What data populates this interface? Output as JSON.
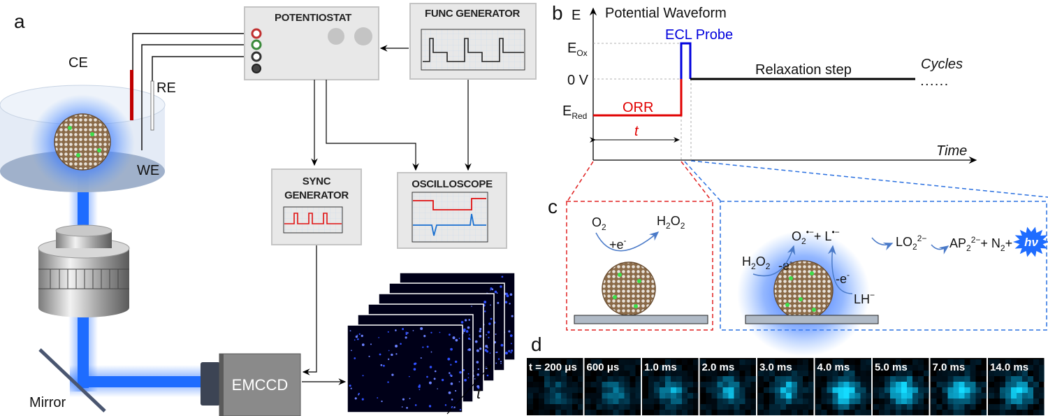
{
  "panel_a": {
    "label": "a",
    "electrodes": {
      "ce": "CE",
      "re": "RE",
      "we": "WE"
    },
    "potentiostat": "POTENTIOSTAT",
    "func_generator": "FUNC GENERATOR",
    "sync_generator": [
      "SYNC",
      "GENERATOR"
    ],
    "oscilloscope": "OSCILLOSCOPE",
    "camera": "EMCCD",
    "mirror": "Mirror",
    "stack_axis": "t",
    "colors": {
      "beam": "#1e6cff",
      "ce_wire": "#c00000",
      "frame_bg": "#000018",
      "spot": "#4060ff"
    }
  },
  "panel_b": {
    "label": "b",
    "y_axis": "E",
    "title": "Potential Waveform",
    "levels": {
      "e_ox": {
        "main": "E",
        "sub": "Ox"
      },
      "zero": "0 V",
      "e_red": {
        "main": "E",
        "sub": "Red"
      }
    },
    "segments": {
      "orr": "ORR",
      "probe": "ECL Probe",
      "relax": "Relaxation step",
      "cycles": "Cycles",
      "dots": "......"
    },
    "duration": "t",
    "x_axis": "Time",
    "colors": {
      "orr": "#e00000",
      "probe": "#0000dd",
      "relax": "#000000"
    }
  },
  "panel_c": {
    "label": "c",
    "left": {
      "reactant": {
        "main": "O",
        "sub": "2"
      },
      "product": {
        "a": "H",
        "s1": "2",
        "b": "O",
        "s2": "2"
      },
      "electron": {
        "main": "+e",
        "sup": "-"
      }
    },
    "right": {
      "h2o2": {
        "a": "H",
        "s1": "2",
        "b": "O",
        "s2": "2"
      },
      "e1": {
        "main": "-e",
        "sup": "-"
      },
      "radicals": {
        "a": "O",
        "s1": "2",
        "sup1": "•−",
        "b": "+ L",
        "sup2": "•−"
      },
      "lo2": {
        "main": "LO",
        "sub": "2",
        "sup": "2−"
      },
      "products": {
        "a": "AP",
        "s1": "2",
        "sup1": "2−",
        "b": "+ N",
        "s2": "2",
        "c": "+"
      },
      "photon": "hν",
      "e2": {
        "main": "-e",
        "sup": "-"
      },
      "lh": {
        "main": "LH",
        "sup": "−"
      }
    },
    "colors": {
      "ox_box": "#e02020",
      "probe_box": "#2a70e0",
      "arrow": "#4a7ac8",
      "glow": "#2a6cf0"
    }
  },
  "panel_d": {
    "label": "d",
    "frames": [
      "t = 200 μs",
      "600 μs",
      "1.0 ms",
      "2.0 ms",
      "3.0 ms",
      "4.0 ms",
      "5.0 ms",
      "7.0 ms",
      "14.0 ms"
    ]
  }
}
